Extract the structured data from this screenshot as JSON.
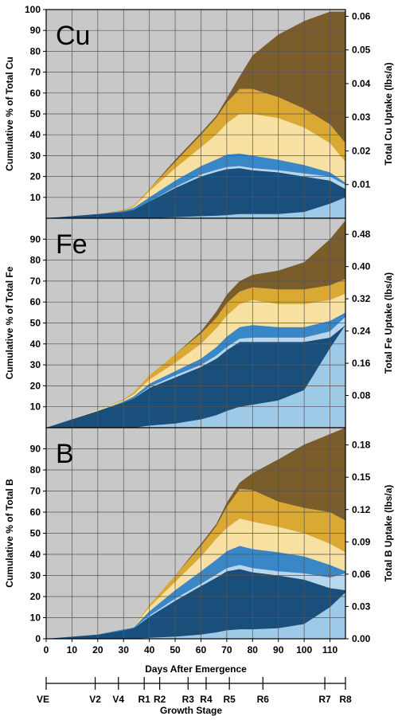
{
  "chart_data": [
    {
      "type": "area",
      "element": "Cu",
      "ylabel": "Cumulative % of Total Cu",
      "y2label": "Total Cu Uptake (lbs/a)",
      "ylim": [
        0,
        100
      ],
      "yticks": [
        10,
        20,
        30,
        40,
        50,
        60,
        70,
        80,
        90,
        100
      ],
      "y2ticks": [
        "0.01",
        "0.02",
        "0.03",
        "0.04",
        "0.05",
        "0.06"
      ],
      "y2ratio": 0.062,
      "xlim": [
        0,
        116
      ],
      "x": [
        0,
        10,
        20,
        30,
        34,
        40,
        50,
        60,
        66,
        70,
        75,
        80,
        90,
        100,
        110,
        116
      ],
      "series": [
        {
          "color": "#9ecae8",
          "values": [
            0,
            0,
            0,
            0,
            0,
            0,
            0.5,
            1,
            1.2,
            1.5,
            2,
            2,
            2,
            3,
            7,
            10
          ]
        },
        {
          "color": "#1b4f7b",
          "values": [
            0,
            1,
            2,
            3,
            4,
            8,
            14,
            19,
            21,
            22,
            22,
            21,
            20,
            17,
            11,
            4
          ]
        },
        {
          "color": "#b7d7ef",
          "values": [
            0,
            0,
            0,
            0,
            0,
            0,
            0.5,
            1,
            1,
            1,
            1,
            1,
            1,
            1.5,
            2,
            2
          ]
        },
        {
          "color": "#3a87c8",
          "values": [
            0,
            0,
            0,
            0.5,
            1,
            2,
            3,
            4,
            5,
            6,
            6,
            6,
            5,
            4,
            2,
            1
          ]
        },
        {
          "color": "#f8dfa2",
          "values": [
            0,
            0,
            0,
            0,
            0.5,
            3,
            6,
            9,
            12,
            15,
            19,
            20,
            20,
            18,
            14,
            10
          ]
        },
        {
          "color": "#d9a934",
          "values": [
            0,
            0,
            0,
            0.5,
            0.5,
            1,
            3,
            6,
            8,
            10,
            12,
            12,
            10,
            9,
            9,
            9
          ]
        },
        {
          "color": "#7b5d2c",
          "values": [
            0,
            0,
            0,
            0,
            0,
            0,
            1,
            1,
            1,
            2,
            6,
            16,
            30,
            42,
            54,
            63
          ]
        }
      ]
    },
    {
      "type": "area",
      "element": "Fe",
      "ylabel": "Cumulative % of Total Fe",
      "y2label": "Total Fe Uptake (lbs/a)",
      "ylim": [
        0,
        100
      ],
      "yticks": [
        10,
        20,
        30,
        40,
        50,
        60,
        70,
        80,
        90
      ],
      "y2ticks": [
        "0.08",
        "0.16",
        "0.24",
        "0.32",
        "0.40",
        "0.48"
      ],
      "y2ratio": 0.52,
      "xlim": [
        0,
        116
      ],
      "x": [
        0,
        10,
        20,
        30,
        34,
        40,
        50,
        60,
        66,
        70,
        75,
        80,
        90,
        100,
        110,
        116
      ],
      "series": [
        {
          "color": "#9ecae8",
          "values": [
            0,
            0,
            0,
            0,
            0,
            1,
            2,
            4,
            6,
            8,
            10,
            11,
            13,
            18,
            38,
            49
          ]
        },
        {
          "color": "#1b4f7b",
          "values": [
            0,
            4,
            8,
            12,
            14,
            18,
            22,
            25,
            27,
            29,
            31,
            30,
            28,
            23,
            5,
            0
          ]
        },
        {
          "color": "#b7d7ef",
          "values": [
            0,
            0,
            0,
            0,
            0,
            0.5,
            1,
            1,
            1.5,
            1.5,
            1.5,
            2,
            2,
            2,
            3,
            4
          ]
        },
        {
          "color": "#3a87c8",
          "values": [
            0,
            0,
            0,
            0.5,
            1,
            1.5,
            2,
            3,
            4,
            5,
            5.5,
            6,
            5,
            5,
            5,
            2
          ]
        },
        {
          "color": "#f8dfa2",
          "values": [
            0,
            0,
            0.5,
            0.5,
            1,
            2,
            4,
            7,
            9,
            10,
            11,
            12,
            11,
            11,
            10,
            9
          ]
        },
        {
          "color": "#d9a934",
          "values": [
            0,
            0,
            0,
            0.5,
            1,
            2,
            4,
            5,
            5,
            6,
            6,
            6,
            7,
            7,
            7,
            7
          ]
        },
        {
          "color": "#7b5d2c",
          "values": [
            0,
            0,
            0,
            0,
            0,
            0,
            0,
            1,
            3,
            4,
            5,
            6,
            9,
            13,
            22,
            28
          ]
        }
      ]
    },
    {
      "type": "area",
      "element": "B",
      "ylabel": "Cumulative % of Total B",
      "y2label": "Total B Uptake (lbs/a)",
      "ylim": [
        0,
        100
      ],
      "yticks": [
        0,
        10,
        20,
        30,
        40,
        50,
        60,
        70,
        80,
        90
      ],
      "y2ticks": [
        "0.00",
        "0.03",
        "0.06",
        "0.09",
        "0.12",
        "0.15",
        "0.18"
      ],
      "y2ratio": 0.196,
      "xlim": [
        0,
        116
      ],
      "xticks": [
        0,
        10,
        20,
        30,
        40,
        50,
        60,
        70,
        80,
        90,
        100,
        110
      ],
      "xlabel": "Days After Emergence",
      "x": [
        0,
        10,
        20,
        30,
        34,
        40,
        50,
        60,
        66,
        70,
        75,
        80,
        90,
        100,
        110,
        116
      ],
      "series": [
        {
          "color": "#9ecae8",
          "values": [
            0,
            0,
            0,
            0,
            0,
            0.5,
            1,
            2,
            3,
            4,
            4.5,
            4.5,
            5,
            7,
            15,
            22
          ]
        },
        {
          "color": "#1b4f7b",
          "values": [
            0,
            1,
            2,
            4,
            5,
            10,
            17,
            23,
            26,
            28,
            28.5,
            27,
            25,
            21,
            9,
            1
          ]
        },
        {
          "color": "#b7d7ef",
          "values": [
            0,
            0,
            0,
            0,
            0,
            0.5,
            1,
            1,
            1.5,
            1.5,
            2,
            2,
            2,
            3,
            5,
            8
          ]
        },
        {
          "color": "#3a87c8",
          "values": [
            0,
            0,
            0,
            0.5,
            0.5,
            2,
            4,
            6,
            7,
            8,
            9,
            9,
            9,
            8,
            6,
            1
          ]
        },
        {
          "color": "#f8dfa2",
          "values": [
            0,
            0,
            0,
            0,
            0.5,
            2,
            4,
            7,
            10,
            11,
            13,
            13,
            12,
            11,
            10,
            9
          ]
        },
        {
          "color": "#d9a934",
          "values": [
            0,
            0,
            0,
            0,
            0,
            1,
            3,
            5,
            6,
            10,
            14,
            15,
            12,
            12,
            15,
            15
          ]
        },
        {
          "color": "#7b5d2c",
          "values": [
            0,
            0,
            0,
            0,
            0,
            0,
            0,
            1,
            1,
            2,
            3,
            8,
            20,
            30,
            37,
            44
          ]
        }
      ]
    }
  ],
  "growth_stage": {
    "title": "Growth Stage",
    "stages": [
      {
        "label": "VE",
        "day": 0
      },
      {
        "label": "V2",
        "day": 19
      },
      {
        "label": "V4",
        "day": 28
      },
      {
        "label": "R1",
        "day": 38
      },
      {
        "label": "R2",
        "day": 44
      },
      {
        "label": "R3",
        "day": 55
      },
      {
        "label": "R4",
        "day": 62
      },
      {
        "label": "R5",
        "day": 71
      },
      {
        "label": "R6",
        "day": 84
      },
      {
        "label": "R7",
        "day": 108
      },
      {
        "label": "R8",
        "day": 116
      }
    ]
  }
}
